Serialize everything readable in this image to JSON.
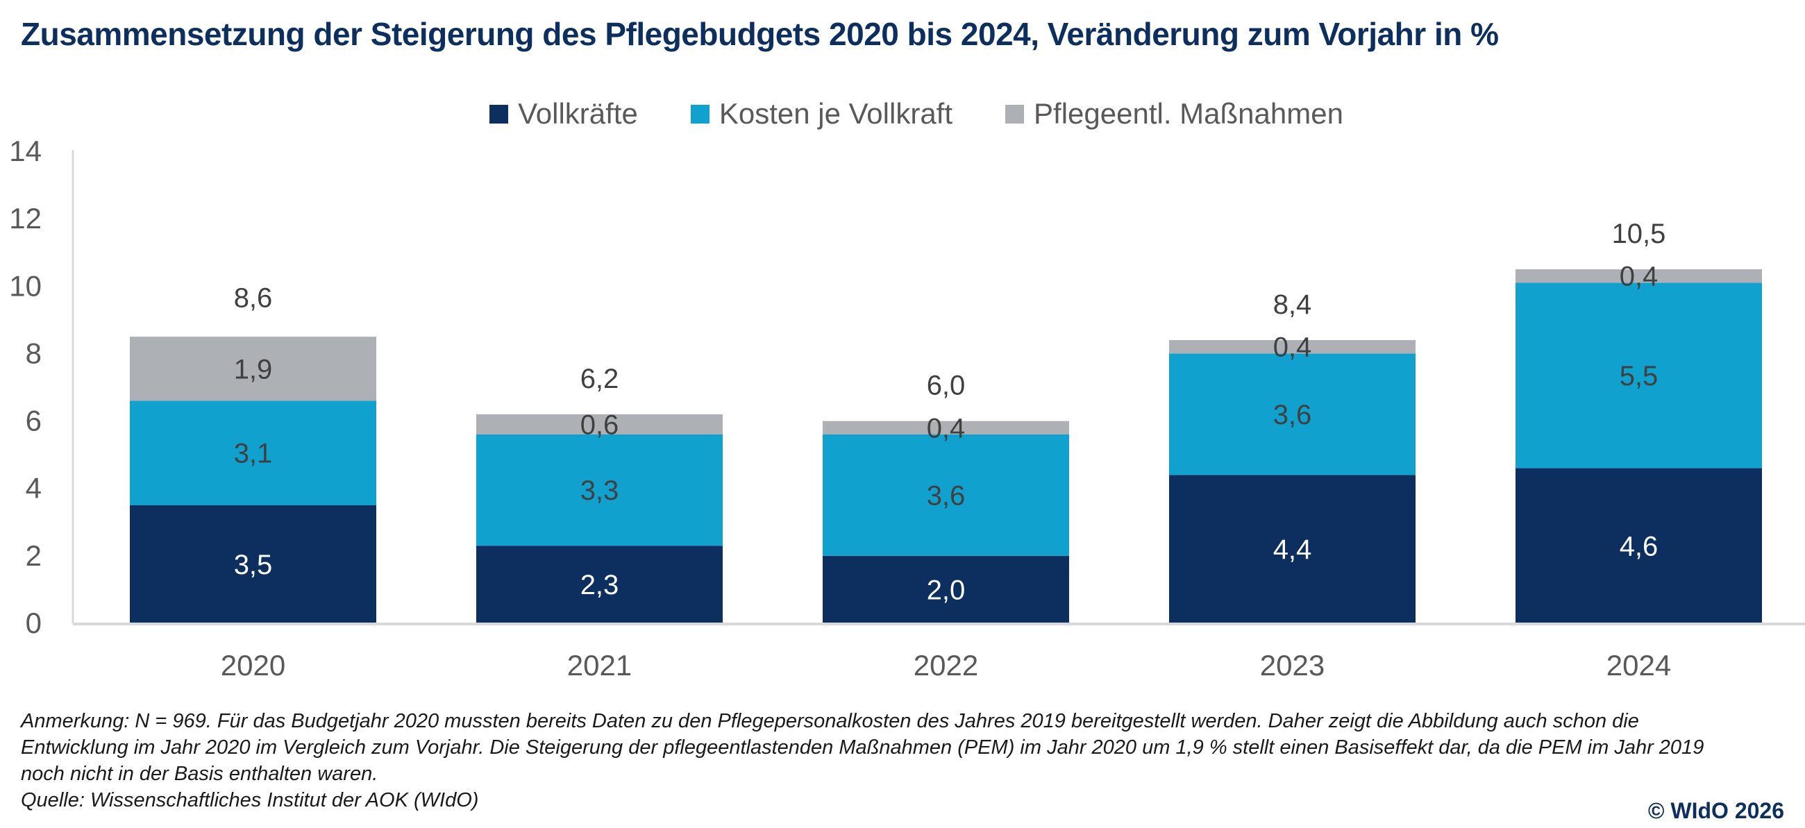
{
  "header": {
    "title": "Zusammensetzung der Steigerung des Pflegebudgets 2020 bis 2024, Veränderung zum Vorjahr in %"
  },
  "legend": [
    {
      "label": "Vollkräfte",
      "color": "#0c2f5f"
    },
    {
      "label": "Kosten je Vollkraft",
      "color": "#11a1cf"
    },
    {
      "label": "Pflegeentl. Maßnahmen",
      "color": "#adb1b5"
    }
  ],
  "chart_data": {
    "type": "bar",
    "stacked": true,
    "title": "Zusammensetzung der Steigerung des Pflegebudgets 2020 bis 2024, Veränderung zum Vorjahr in %",
    "xlabel": "",
    "ylabel": "",
    "categories": [
      "2020",
      "2021",
      "2022",
      "2023",
      "2024"
    ],
    "series": [
      {
        "name": "Vollkräfte",
        "color": "#0c2f5f",
        "values": [
          3.5,
          2.3,
          2.0,
          4.4,
          4.6
        ],
        "labels": [
          "3,5",
          "2,3",
          "2,0",
          "4,4",
          "4,6"
        ],
        "label_color": "#ffffff"
      },
      {
        "name": "Kosten je Vollkraft",
        "color": "#11a1cf",
        "values": [
          3.1,
          3.3,
          3.6,
          3.6,
          5.5
        ],
        "labels": [
          "3,1",
          "3,3",
          "3,6",
          "3,6",
          "5,5"
        ],
        "label_color": "#404040"
      },
      {
        "name": "Pflegeentl. Maßnahmen",
        "color": "#adb1b5",
        "values": [
          1.9,
          0.6,
          0.4,
          0.4,
          0.4
        ],
        "labels": [
          "1,9",
          "0,6",
          "0,4",
          "0,4",
          "0,4"
        ],
        "label_color": "#404040"
      }
    ],
    "totals": [
      8.6,
      6.2,
      6.0,
      8.4,
      10.5
    ],
    "total_labels": [
      "8,6",
      "6,2",
      "6,0",
      "8,4",
      "10,5"
    ],
    "ylim": [
      0,
      14
    ],
    "yticks": [
      0,
      2,
      4,
      6,
      8,
      10,
      12,
      14
    ],
    "ytick_labels": [
      "0",
      "2",
      "4",
      "6",
      "8",
      "10",
      "12",
      "14"
    ],
    "grid": false,
    "legend_position": "top-center"
  },
  "footer": {
    "note_lines": [
      "Anmerkung: N = 969. Für das Budgetjahr 2020 mussten bereits Daten zu den Pflegepersonalkosten des Jahres 2019 bereitgestellt werden. Daher zeigt die Abbildung auch schon die",
      "Entwicklung im Jahr 2020 im Vergleich zum Vorjahr. Die Steigerung der pflegeentlastenden Maßnahmen (PEM) im Jahr 2020 um 1,9 % stellt einen Basiseffekt dar, da die PEM im Jahr 2019",
      "noch nicht in der Basis enthalten waren."
    ],
    "source": "Quelle: Wissenschaftliches Institut der AOK (WIdO)",
    "copyright": "© WIdO 2026"
  }
}
